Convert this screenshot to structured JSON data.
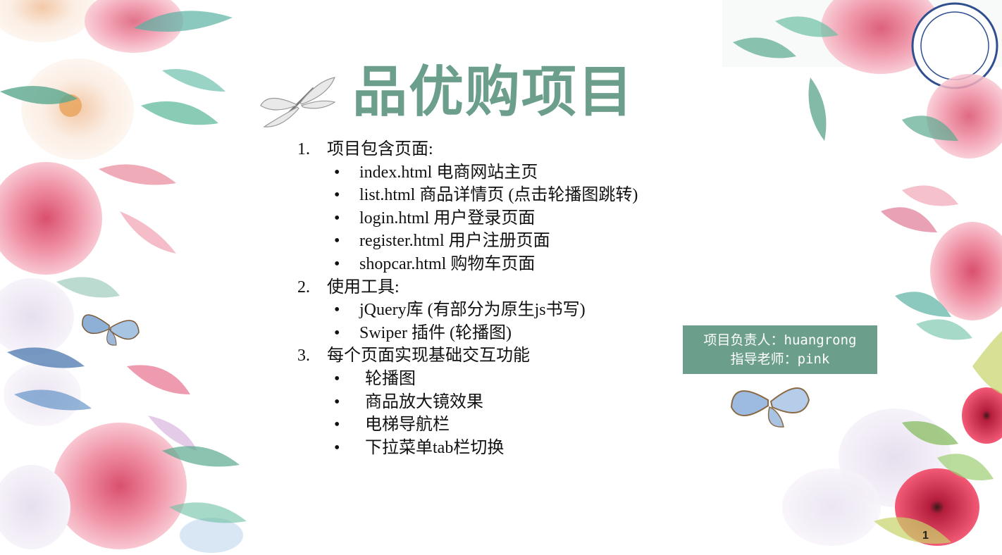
{
  "slide": {
    "title": "品优购项目",
    "page_number": "1",
    "colors": {
      "accent": "#6b9e8b",
      "rose": "#e88aa0",
      "leaf": "#5aa88f",
      "butterfly": "#8fb0d6"
    },
    "sections": [
      {
        "number": "1.",
        "heading": "项目包含页面:",
        "items": [
          "index.html  电商网站主页",
          "list.html   商品详情页 (点击轮播图跳转)",
          "login.html   用户登录页面",
          "register.html  用户注册页面",
          "shopcar.html 购物车页面"
        ]
      },
      {
        "number": "2.",
        "heading": "使用工具:",
        "items": [
          "jQuery库 (有部分为原生js书写)",
          "Swiper 插件 (轮播图)"
        ]
      },
      {
        "number": "3.",
        "heading": "每个页面实现基础交互功能",
        "items": [
          "轮播图",
          "商品放大镜效果",
          "电梯导航栏",
          "下拉菜单tab栏切换"
        ]
      }
    ],
    "badge": {
      "line1": "项目负责人：huangrong",
      "line2": "指导老师：pink"
    },
    "decor_icons": [
      "rose-flower-icon",
      "leaf-branch-icon",
      "butterfly-icon",
      "dragonfly-icon",
      "poppy-flower-icon",
      "university-seal-icon"
    ]
  }
}
